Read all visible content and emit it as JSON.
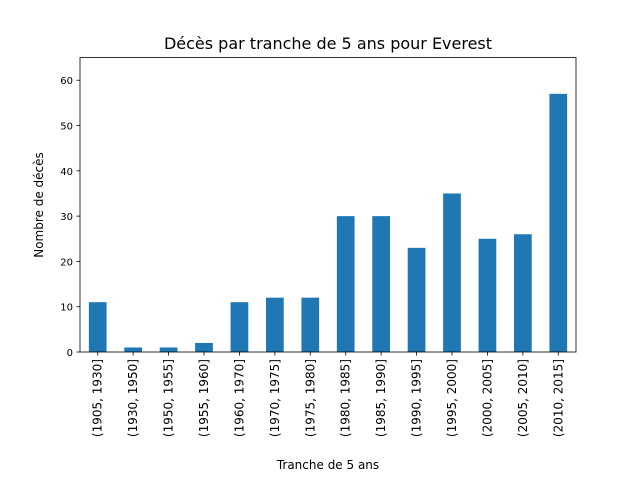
{
  "chart_data": {
    "type": "bar",
    "title": "Décès par tranche de 5 ans pour Everest",
    "xlabel": "Tranche de 5 ans",
    "ylabel": "Nombre de décès",
    "categories": [
      "(1905, 1930]",
      "(1930, 1950]",
      "(1950, 1955]",
      "(1955, 1960]",
      "(1960, 1970]",
      "(1970, 1975]",
      "(1975, 1980]",
      "(1980, 1985]",
      "(1985, 1990]",
      "(1990, 1995]",
      "(1995, 2000]",
      "(2000, 2005]",
      "(2005, 2010]",
      "(2010, 2015]"
    ],
    "values": [
      11,
      1,
      1,
      2,
      11,
      12,
      12,
      30,
      30,
      23,
      35,
      25,
      26,
      57
    ],
    "ylim": [
      0,
      65
    ],
    "yticks": [
      0,
      10,
      20,
      30,
      40,
      50,
      60
    ],
    "bar_color": "#1f77b4",
    "grid": false,
    "legend": false
  }
}
